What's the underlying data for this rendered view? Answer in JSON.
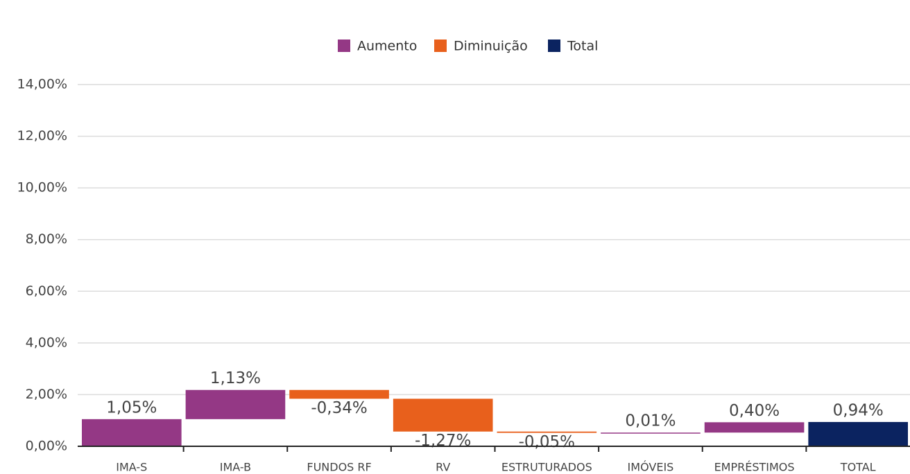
{
  "chart_data": {
    "type": "waterfall",
    "legend": [
      {
        "name": "Aumento",
        "color": "#943885"
      },
      {
        "name": "Diminuição",
        "color": "#e8601c"
      },
      {
        "name": "Total",
        "color": "#0b2360"
      }
    ],
    "categories": [
      "IMA-S",
      "IMA-B",
      "FUNDOS RF",
      "RV",
      "ESTRUTURADOS",
      "IMÓVEIS",
      "EMPRÉSTIMOS",
      "TOTAL"
    ],
    "values": [
      1.05,
      1.13,
      -0.34,
      -1.27,
      -0.05,
      0.01,
      0.4,
      0.94
    ],
    "value_labels": [
      "1,05%",
      "1,13%",
      "-0,34%",
      "-1,27%",
      "-0,05%",
      "0,01%",
      "0,40%",
      "0,94%"
    ],
    "ylim": [
      0,
      14
    ],
    "yticks": [
      {
        "value": 0,
        "label": "0,00%"
      },
      {
        "value": 2,
        "label": "2,00%"
      },
      {
        "value": 4,
        "label": "4,00%"
      },
      {
        "value": 6,
        "label": "6,00%"
      },
      {
        "value": 8,
        "label": "8,00%"
      },
      {
        "value": 10,
        "label": "10,00%"
      },
      {
        "value": 12,
        "label": "12,00%"
      },
      {
        "value": 14,
        "label": "14,00%"
      }
    ],
    "grid": true
  }
}
